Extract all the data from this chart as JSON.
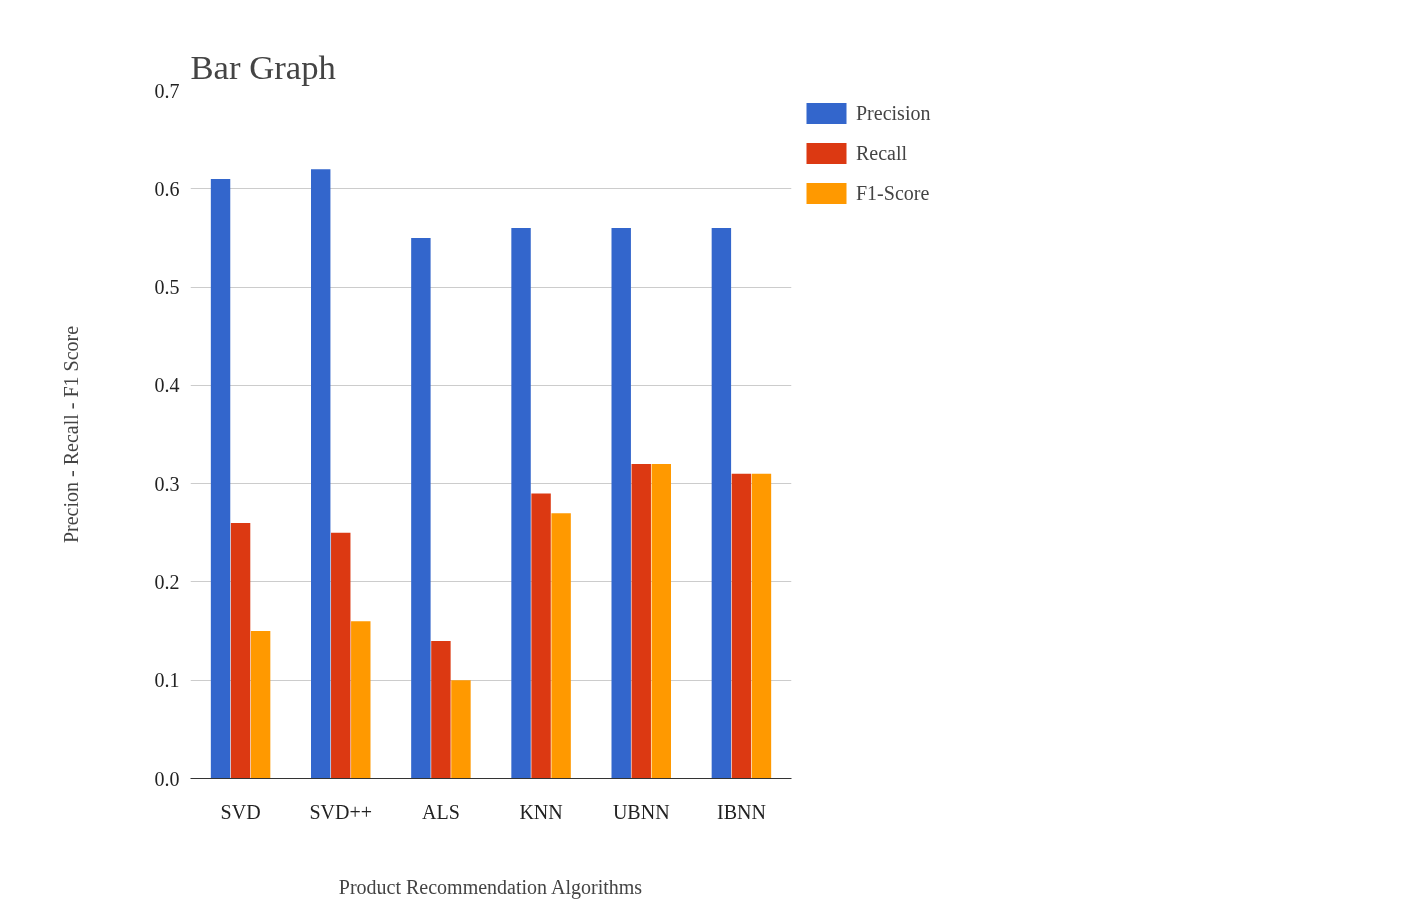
{
  "chart_data": {
    "type": "bar",
    "title": "Bar Graph",
    "xlabel": "Product Recommendation Algorithms",
    "ylabel": "Precion - Recall - F1 Score",
    "categories": [
      "SVD",
      "SVD++",
      "ALS",
      "KNN",
      "UBNN",
      "IBNN"
    ],
    "series": [
      {
        "name": "Precision",
        "color": "#3366cc",
        "values": [
          0.61,
          0.62,
          0.55,
          0.56,
          0.56,
          0.56
        ]
      },
      {
        "name": "Recall",
        "color": "#dc3912",
        "values": [
          0.26,
          0.25,
          0.14,
          0.29,
          0.32,
          0.31
        ]
      },
      {
        "name": "F1-Score",
        "color": "#ff9900",
        "values": [
          0.15,
          0.16,
          0.1,
          0.27,
          0.32,
          0.31
        ]
      }
    ],
    "ylim": [
      0,
      0.7
    ],
    "yticks": [
      {
        "value": 0,
        "label": "0.0"
      },
      0.1,
      0.2,
      0.3,
      0.4,
      0.5,
      0.6,
      0.7
    ],
    "grid": "y",
    "legend": "top right"
  }
}
